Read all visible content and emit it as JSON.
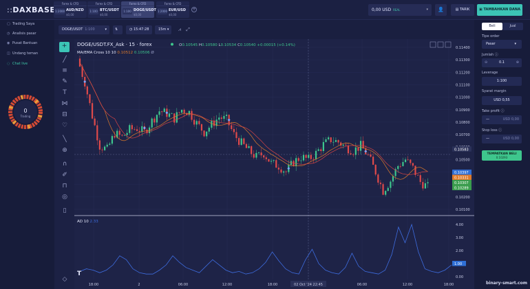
{
  "brand": {
    "prefix": "::",
    "name": "DAXBASE"
  },
  "tabs": [
    {
      "category": "Forex & CFD",
      "leverage": "1:2000",
      "symbol": "AUD/NZD",
      "price": "$0,00"
    },
    {
      "category": "Forex & CFD",
      "leverage": "1:100",
      "symbol": "BTC/USDT",
      "price": "$0,00"
    },
    {
      "category": "Forex & CFD",
      "leverage": "1:100",
      "symbol": "DOGE/USDT",
      "price": "$0,00"
    },
    {
      "category": "Forex & CFD",
      "leverage": "1:2000",
      "symbol": "EUR/USD",
      "price": "$0,00"
    }
  ],
  "header": {
    "balance": "0,00 USD",
    "balance_type": "REAL",
    "withdraw": "TARIK",
    "deposit": "TAMBAHKAN DANA"
  },
  "sidebar": {
    "items": [
      {
        "label": "Trading Saya"
      },
      {
        "label": "Analisis pasar"
      },
      {
        "label": "Pusat Bantuan"
      },
      {
        "label": "Undang teman"
      },
      {
        "label": "Chat live"
      }
    ],
    "trading_count": "0",
    "trading_label": "Trading"
  },
  "toolbar": {
    "symbol": "DOGE/USDT",
    "leverage": "1:100",
    "time": "15:47:28",
    "interval": "15m"
  },
  "chart_header": {
    "title": "DOGE/USDT.FX_Ask · 15 · forex",
    "o": "0.10545",
    "h": "0.10580",
    "l": "0.10534",
    "c": "0.10540",
    "change": "+0.00015 (+0.14%)",
    "ma_label": "MA/EMA Cross 10 10",
    "ma1": "0.10512",
    "ma2": "0.10506",
    "ma3": "Ø",
    "ad_label": "AD 10",
    "ad_value": "2.33"
  },
  "chart_data": {
    "type": "line",
    "title": "DOGE/USDT.FX_Ask · 15 · forex",
    "series": [
      {
        "values": [
          0.1131,
          0.1112,
          0.1085,
          0.1061,
          0.1058,
          0.1071,
          0.1068,
          0.1074,
          0.1075,
          0.1072,
          0.1081,
          0.1089,
          0.1087,
          0.1083,
          0.109,
          0.1088,
          0.1079,
          0.1072,
          0.1078,
          0.1084,
          0.1082,
          0.107,
          0.1063,
          0.1057,
          0.1052,
          0.1055,
          0.1047,
          0.1045,
          0.104,
          0.1048,
          0.1052,
          0.105,
          0.1055,
          0.1062,
          0.1066,
          0.1064,
          0.106,
          0.1057,
          0.1061,
          0.1053,
          0.104,
          0.1025,
          0.1033,
          0.1045,
          0.105,
          0.1043,
          0.1032,
          0.1028
        ]
      }
    ],
    "x_ticks": [
      "18:00",
      "2",
      "06:00",
      "12:00",
      "18:00",
      "02 Oct '24  22:45",
      "06:00",
      "12:00",
      "18:00"
    ],
    "y_ticks": [
      "0.11400",
      "0.11300",
      "0.11200",
      "0.11100",
      "0.11000",
      "0.10900",
      "0.10800",
      "0.10700",
      "0.10600",
      "0.10500",
      "0.10400",
      "0.10300",
      "0.10200",
      "0.10100"
    ],
    "price_labels": [
      {
        "value": "0.10583",
        "color": "#2b3159"
      },
      {
        "value": "0.10397",
        "color": "#2f6fd6"
      },
      {
        "value": "0.10331",
        "color": "#e07b2a"
      },
      {
        "value": "0.10307",
        "color": "#3a9e4d"
      },
      {
        "value": "0.10289",
        "color": "#3a9e4d"
      }
    ],
    "ad_series": {
      "values": [
        0.4,
        0.6,
        0.5,
        0.3,
        0.5,
        0.9,
        1.6,
        1.3,
        0.6,
        0.3,
        0.2,
        0.2,
        0.5,
        0.9,
        1.6,
        1.1,
        0.7,
        0.5,
        0.3,
        0.8,
        1.3,
        0.9,
        0.5,
        0.3,
        0.4,
        0.2,
        0.3,
        0.6,
        1.1,
        1.9,
        1.2,
        0.6,
        0.3,
        0.2,
        1.3,
        2.1,
        1.0,
        0.5,
        0.3,
        0.2,
        0.7,
        1.8,
        0.8,
        0.4,
        0.3,
        0.2,
        0.5,
        1.7,
        3.8,
        2.6,
        4.0,
        1.9,
        0.6,
        0.4,
        0.3,
        0.5,
        0.9
      ],
      "y_ticks": [
        "4.00",
        "3.00",
        "2.00",
        "1.00",
        "0.00"
      ],
      "current": "1.00"
    }
  },
  "order": {
    "buy_tab": "Beli",
    "sell_tab": "Jual",
    "type_label": "Tipe order",
    "type_value": "Pasar",
    "amount_label": "Jumlah",
    "amount_value": "0.1",
    "leverage_label": "Leverage",
    "leverage_value": "1:100",
    "margin_label": "Syarat margin",
    "margin_value": "USD 0,55",
    "tp_label": "Take profit",
    "tp_value": "USD 0,00",
    "sl_label": "Stop loss",
    "sl_value": "USD 0,00",
    "submit": "TEMPATKAN BELI",
    "submit_price": "0.10293",
    "dash": "—"
  },
  "watermark": "binary-smart.com",
  "colors": {
    "up": "#3ec68d",
    "down": "#e04a4a",
    "ma_orange": "#e07b2a",
    "ma_red": "#d64545",
    "ad_line": "#3e6de0",
    "accent": "#3cc4b6"
  }
}
